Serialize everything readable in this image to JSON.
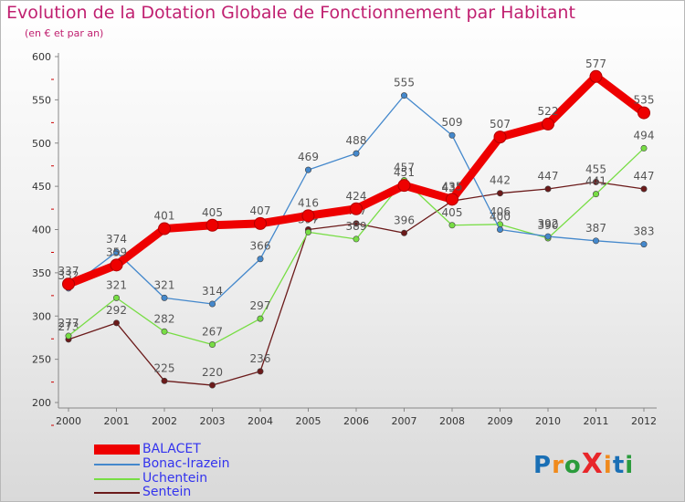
{
  "title": "Evolution de la Dotation Globale de Fonctionnement par Habitant",
  "subtitle": "(en € et par an)",
  "brand": "ProXiti",
  "colors": {
    "title": "#c02070",
    "axis_text": "#333333",
    "legend_text": "#3333ee",
    "tick_marker": "#cc0000",
    "label_text": "#555555"
  },
  "chart_data": {
    "type": "line",
    "title": "Evolution de la Dotation Globale de Fonctionnement par Habitant",
    "subtitle": "(en € et par an)",
    "xlabel": "",
    "ylabel": "",
    "categories": [
      "2000",
      "2001",
      "2002",
      "2003",
      "2004",
      "2005",
      "2006",
      "2007",
      "2008",
      "2009",
      "2010",
      "2011",
      "2012"
    ],
    "ylim": [
      200,
      600
    ],
    "yticks": [
      200,
      250,
      300,
      350,
      400,
      450,
      500,
      550,
      600
    ],
    "grid": false,
    "legend_position": "bottom-left",
    "series": [
      {
        "name": "Sentein",
        "color": "#6b1a1a",
        "values": [
          273,
          292,
          225,
          220,
          236,
          400,
          407,
          396,
          433,
          442,
          447,
          455,
          447
        ],
        "labels": [
          "273",
          "292",
          "225",
          "220",
          "236",
          "400",
          "407",
          "396",
          "433",
          "442",
          "447",
          "455",
          "447"
        ]
      },
      {
        "name": "Uchentein",
        "color": "#77dd44",
        "values": [
          277,
          321,
          282,
          267,
          297,
          397,
          389,
          457,
          405,
          406,
          390,
          441,
          494
        ],
        "labels": [
          "277",
          "321",
          "282",
          "267",
          "297",
          "397",
          "389",
          "457",
          "405",
          "406",
          "390",
          "441",
          "494"
        ]
      },
      {
        "name": "Bonac-Irazein",
        "color": "#4488cc",
        "values": [
          332,
          374,
          321,
          314,
          366,
          469,
          488,
          555,
          509,
          400,
          392,
          387,
          383
        ],
        "labels": [
          "332",
          "374",
          "321",
          "314",
          "366",
          "469",
          "488",
          "555",
          "509",
          "400",
          "392",
          "387",
          "383"
        ]
      },
      {
        "name": "BALACET",
        "color": "#ee0000",
        "values": [
          337,
          359,
          401,
          405,
          407,
          416,
          424,
          451,
          435,
          507,
          522,
          577,
          535
        ],
        "labels": [
          "337",
          "359",
          "401",
          "405",
          "407",
          "416",
          "424",
          "451",
          "435",
          "507",
          "522",
          "577",
          "535"
        ]
      }
    ],
    "legend": [
      "BALACET",
      "Bonac-Irazein",
      "Uchentein",
      "Sentein"
    ]
  }
}
